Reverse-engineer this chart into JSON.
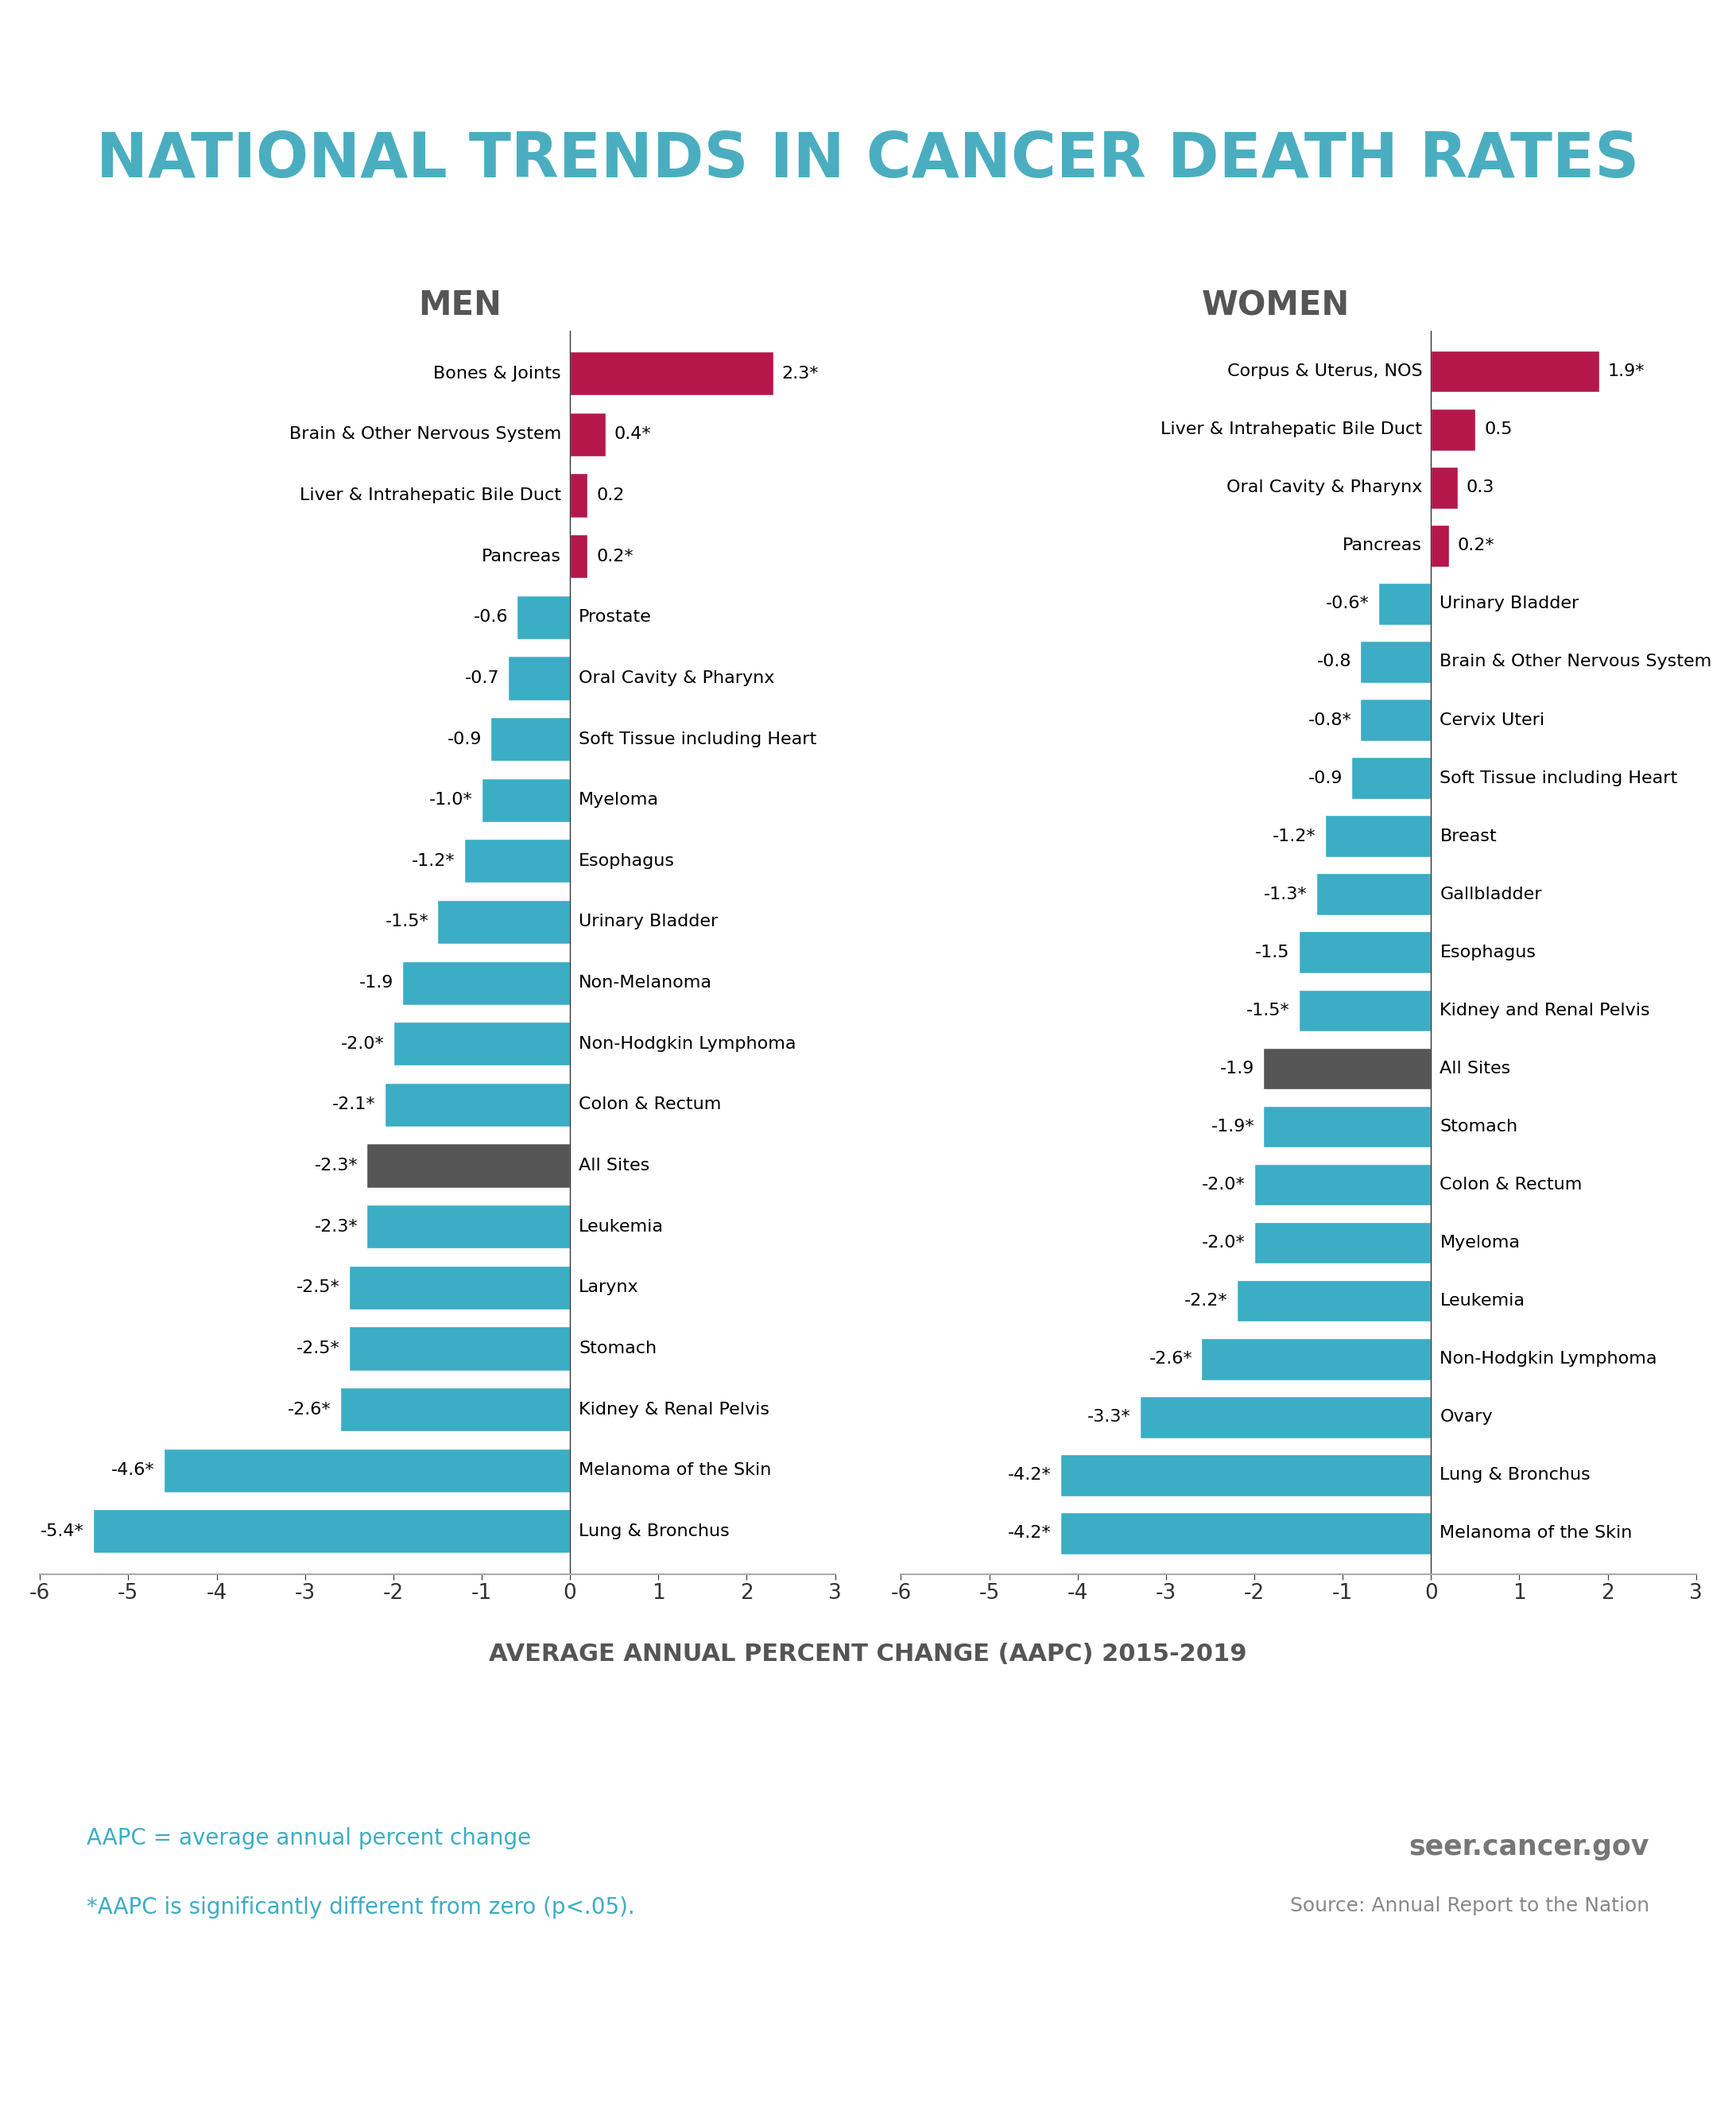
{
  "title": "NATIONAL TRENDS IN CANCER DEATH RATES",
  "title_color": "#4AAEC0",
  "subtitle": "AVERAGE ANNUAL PERCENT CHANGE (AAPC) 2015-2019",
  "men_label": "MEN",
  "women_label": "WOMEN",
  "men_data": [
    {
      "label": "Bones & Joints",
      "value": 2.3,
      "sig": true,
      "color": "#B5174B"
    },
    {
      "label": "Brain & Other Nervous System",
      "value": 0.4,
      "sig": true,
      "color": "#B5174B"
    },
    {
      "label": "Liver & Intrahepatic Bile Duct",
      "value": 0.2,
      "sig": false,
      "color": "#B5174B"
    },
    {
      "label": "Pancreas",
      "value": 0.2,
      "sig": true,
      "color": "#B5174B"
    },
    {
      "label": "Prostate",
      "value": -0.6,
      "sig": false,
      "color": "#3BADC5"
    },
    {
      "label": "Oral Cavity & Pharynx",
      "value": -0.7,
      "sig": false,
      "color": "#3BADC5"
    },
    {
      "label": "Soft Tissue including Heart",
      "value": -0.9,
      "sig": false,
      "color": "#3BADC5"
    },
    {
      "label": "Myeloma",
      "value": -1.0,
      "sig": true,
      "color": "#3BADC5"
    },
    {
      "label": "Esophagus",
      "value": -1.2,
      "sig": true,
      "color": "#3BADC5"
    },
    {
      "label": "Urinary Bladder",
      "value": -1.5,
      "sig": true,
      "color": "#3BADC5"
    },
    {
      "label": "Non-Melanoma",
      "value": -1.9,
      "sig": false,
      "color": "#3BADC5"
    },
    {
      "label": "Non-Hodgkin Lymphoma",
      "value": -2.0,
      "sig": true,
      "color": "#3BADC5"
    },
    {
      "label": "Colon & Rectum",
      "value": -2.1,
      "sig": true,
      "color": "#3BADC5"
    },
    {
      "label": "All Sites",
      "value": -2.3,
      "sig": true,
      "color": "#555555"
    },
    {
      "label": "Leukemia",
      "value": -2.3,
      "sig": true,
      "color": "#3BADC5"
    },
    {
      "label": "Larynx",
      "value": -2.5,
      "sig": true,
      "color": "#3BADC5"
    },
    {
      "label": "Stomach",
      "value": -2.5,
      "sig": true,
      "color": "#3BADC5"
    },
    {
      "label": "Kidney & Renal Pelvis",
      "value": -2.6,
      "sig": true,
      "color": "#3BADC5"
    },
    {
      "label": "Melanoma of the Skin",
      "value": -4.6,
      "sig": true,
      "color": "#3BADC5"
    },
    {
      "label": "Lung & Bronchus",
      "value": -5.4,
      "sig": true,
      "color": "#3BADC5"
    }
  ],
  "women_data": [
    {
      "label": "Corpus & Uterus, NOS",
      "value": 1.9,
      "sig": true,
      "color": "#B5174B"
    },
    {
      "label": "Liver & Intrahepatic Bile Duct",
      "value": 0.5,
      "sig": false,
      "color": "#B5174B"
    },
    {
      "label": "Oral Cavity & Pharynx",
      "value": 0.3,
      "sig": false,
      "color": "#B5174B"
    },
    {
      "label": "Pancreas",
      "value": 0.2,
      "sig": true,
      "color": "#B5174B"
    },
    {
      "label": "Urinary Bladder",
      "value": -0.6,
      "sig": true,
      "color": "#3BADC5"
    },
    {
      "label": "Brain & Other Nervous System",
      "value": -0.8,
      "sig": false,
      "color": "#3BADC5"
    },
    {
      "label": "Cervix Uteri",
      "value": -0.8,
      "sig": true,
      "color": "#3BADC5"
    },
    {
      "label": "Soft Tissue including Heart",
      "value": -0.9,
      "sig": false,
      "color": "#3BADC5"
    },
    {
      "label": "Breast",
      "value": -1.2,
      "sig": true,
      "color": "#3BADC5"
    },
    {
      "label": "Gallbladder",
      "value": -1.3,
      "sig": true,
      "color": "#3BADC5"
    },
    {
      "label": "Esophagus",
      "value": -1.5,
      "sig": false,
      "color": "#3BADC5"
    },
    {
      "label": "Kidney and Renal Pelvis",
      "value": -1.5,
      "sig": true,
      "color": "#3BADC5"
    },
    {
      "label": "All Sites",
      "value": -1.9,
      "sig": false,
      "color": "#555555"
    },
    {
      "label": "Stomach",
      "value": -1.9,
      "sig": true,
      "color": "#3BADC5"
    },
    {
      "label": "Colon & Rectum",
      "value": -2.0,
      "sig": true,
      "color": "#3BADC5"
    },
    {
      "label": "Myeloma",
      "value": -2.0,
      "sig": true,
      "color": "#3BADC5"
    },
    {
      "label": "Leukemia",
      "value": -2.2,
      "sig": true,
      "color": "#3BADC5"
    },
    {
      "label": "Non-Hodgkin Lymphoma",
      "value": -2.6,
      "sig": true,
      "color": "#3BADC5"
    },
    {
      "label": "Ovary",
      "value": -3.3,
      "sig": true,
      "color": "#3BADC5"
    },
    {
      "label": "Lung & Bronchus",
      "value": -4.2,
      "sig": true,
      "color": "#3BADC5"
    },
    {
      "label": "Melanoma of the Skin",
      "value": -4.2,
      "sig": true,
      "color": "#3BADC5"
    }
  ],
  "footnote1": "AAPC = average annual percent change",
  "footnote2": "*AAPC is significantly different from zero (p<.05).",
  "source1": "seer.cancer.gov",
  "source2": "Source: Annual Report to the Nation",
  "xlim": [
    -6,
    3
  ],
  "xticks": [
    -6,
    -5,
    -4,
    -3,
    -2,
    -1,
    0,
    1,
    2,
    3
  ],
  "background_color": "#FFFFFF",
  "bar_height": 0.72
}
